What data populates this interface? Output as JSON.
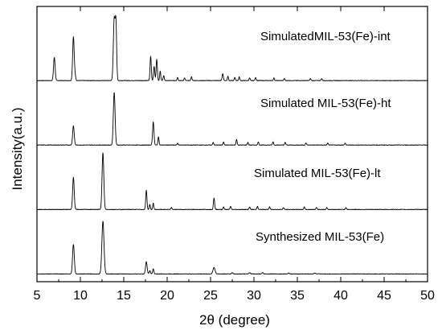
{
  "chart_data": {
    "type": "line",
    "xlabel": "2θ (degree)",
    "ylabel": "Intensity(a.u.)",
    "xlim": [
      5,
      50
    ],
    "x_ticks": [
      5,
      10,
      15,
      20,
      25,
      30,
      35,
      40,
      45,
      50
    ],
    "y_ticks_shown": false,
    "series": [
      {
        "name": "SimulatedMIL-53(Fe)-int",
        "baseline": 3.0,
        "peaks": [
          {
            "x": 7.0,
            "h": 0.36,
            "w": 0.09
          },
          {
            "x": 9.2,
            "h": 0.68,
            "w": 0.09
          },
          {
            "x": 9.4,
            "h": 0.07,
            "w": 0.07
          },
          {
            "x": 13.9,
            "h": 0.95,
            "w": 0.1
          },
          {
            "x": 14.1,
            "h": 0.85,
            "w": 0.08
          },
          {
            "x": 18.1,
            "h": 0.38,
            "w": 0.07
          },
          {
            "x": 18.5,
            "h": 0.22,
            "w": 0.07
          },
          {
            "x": 18.8,
            "h": 0.33,
            "w": 0.07
          },
          {
            "x": 19.2,
            "h": 0.15,
            "w": 0.06
          },
          {
            "x": 19.6,
            "h": 0.08,
            "w": 0.06
          },
          {
            "x": 21.2,
            "h": 0.05,
            "w": 0.06
          },
          {
            "x": 22.0,
            "h": 0.04,
            "w": 0.06
          },
          {
            "x": 22.8,
            "h": 0.06,
            "w": 0.06
          },
          {
            "x": 26.4,
            "h": 0.11,
            "w": 0.07
          },
          {
            "x": 27.0,
            "h": 0.07,
            "w": 0.06
          },
          {
            "x": 27.8,
            "h": 0.05,
            "w": 0.06
          },
          {
            "x": 28.3,
            "h": 0.06,
            "w": 0.06
          },
          {
            "x": 29.5,
            "h": 0.04,
            "w": 0.06
          },
          {
            "x": 30.2,
            "h": 0.05,
            "w": 0.06
          },
          {
            "x": 32.3,
            "h": 0.04,
            "w": 0.06
          },
          {
            "x": 33.5,
            "h": 0.03,
            "w": 0.06
          },
          {
            "x": 36.5,
            "h": 0.03,
            "w": 0.06
          },
          {
            "x": 37.8,
            "h": 0.03,
            "w": 0.06
          }
        ]
      },
      {
        "name": "Simulated MIL-53(Fe)-ht",
        "baseline": 2.0,
        "peaks": [
          {
            "x": 9.2,
            "h": 0.3,
            "w": 0.09
          },
          {
            "x": 13.9,
            "h": 0.82,
            "w": 0.1
          },
          {
            "x": 18.4,
            "h": 0.36,
            "w": 0.08
          },
          {
            "x": 19.0,
            "h": 0.13,
            "w": 0.06
          },
          {
            "x": 21.2,
            "h": 0.03,
            "w": 0.06
          },
          {
            "x": 25.3,
            "h": 0.04,
            "w": 0.06
          },
          {
            "x": 26.5,
            "h": 0.05,
            "w": 0.06
          },
          {
            "x": 28.0,
            "h": 0.09,
            "w": 0.06
          },
          {
            "x": 29.3,
            "h": 0.04,
            "w": 0.06
          },
          {
            "x": 30.5,
            "h": 0.05,
            "w": 0.06
          },
          {
            "x": 32.2,
            "h": 0.05,
            "w": 0.06
          },
          {
            "x": 33.6,
            "h": 0.04,
            "w": 0.06
          },
          {
            "x": 36.0,
            "h": 0.03,
            "w": 0.06
          },
          {
            "x": 38.5,
            "h": 0.03,
            "w": 0.06
          },
          {
            "x": 40.5,
            "h": 0.03,
            "w": 0.06
          }
        ]
      },
      {
        "name": "Simulated MIL-53(Fe)-lt",
        "baseline": 1.0,
        "peaks": [
          {
            "x": 9.2,
            "h": 0.5,
            "w": 0.09
          },
          {
            "x": 12.6,
            "h": 0.88,
            "w": 0.1
          },
          {
            "x": 17.6,
            "h": 0.3,
            "w": 0.07
          },
          {
            "x": 18.0,
            "h": 0.08,
            "w": 0.06
          },
          {
            "x": 18.4,
            "h": 0.1,
            "w": 0.06
          },
          {
            "x": 20.5,
            "h": 0.03,
            "w": 0.06
          },
          {
            "x": 25.4,
            "h": 0.18,
            "w": 0.07
          },
          {
            "x": 26.5,
            "h": 0.04,
            "w": 0.06
          },
          {
            "x": 27.3,
            "h": 0.05,
            "w": 0.06
          },
          {
            "x": 29.5,
            "h": 0.04,
            "w": 0.06
          },
          {
            "x": 30.4,
            "h": 0.05,
            "w": 0.06
          },
          {
            "x": 31.8,
            "h": 0.04,
            "w": 0.06
          },
          {
            "x": 33.4,
            "h": 0.03,
            "w": 0.06
          },
          {
            "x": 35.8,
            "h": 0.04,
            "w": 0.06
          },
          {
            "x": 37.2,
            "h": 0.03,
            "w": 0.06
          },
          {
            "x": 38.4,
            "h": 0.03,
            "w": 0.06
          },
          {
            "x": 40.6,
            "h": 0.03,
            "w": 0.06
          }
        ]
      },
      {
        "name": "Synthesized MIL-53(Fe)",
        "baseline": 0.0,
        "peaks": [
          {
            "x": 9.2,
            "h": 0.46,
            "w": 0.1
          },
          {
            "x": 12.6,
            "h": 0.82,
            "w": 0.12
          },
          {
            "x": 17.6,
            "h": 0.19,
            "w": 0.09
          },
          {
            "x": 18.0,
            "h": 0.05,
            "w": 0.07
          },
          {
            "x": 18.4,
            "h": 0.08,
            "w": 0.07
          },
          {
            "x": 25.4,
            "h": 0.1,
            "w": 0.12
          },
          {
            "x": 27.5,
            "h": 0.02,
            "w": 0.08
          },
          {
            "x": 29.5,
            "h": 0.02,
            "w": 0.08
          },
          {
            "x": 31.0,
            "h": 0.02,
            "w": 0.08
          },
          {
            "x": 34.0,
            "h": 0.015,
            "w": 0.08
          },
          {
            "x": 37.0,
            "h": 0.015,
            "w": 0.08
          }
        ]
      }
    ],
    "y_range": [
      -0.12,
      4.15
    ],
    "line_color": "#000000",
    "grid": false,
    "legend": "inline"
  }
}
